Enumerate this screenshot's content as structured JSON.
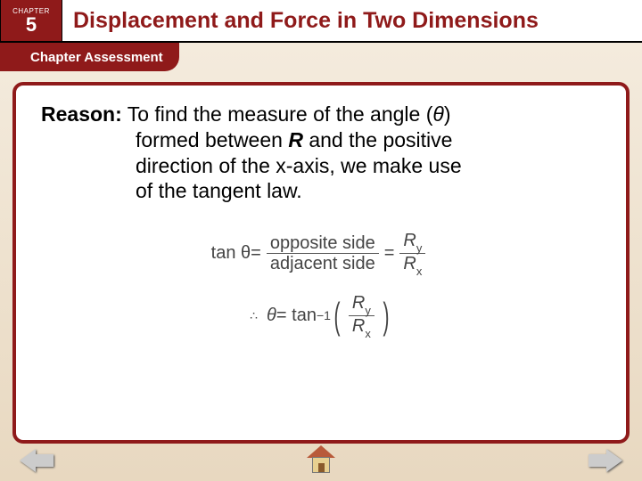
{
  "header": {
    "chapter_label": "CHAPTER",
    "chapter_number": "5",
    "title": "Displacement and Force in Two Dimensions"
  },
  "subheader": {
    "label": "Chapter Assessment"
  },
  "content": {
    "reason_label": "Reason:",
    "reason_line1_a": " To find the measure of the angle (",
    "theta_glyph": "θ",
    "reason_line1_b": ")",
    "reason_line2": "formed between ",
    "R_bold": "R",
    "reason_line2b": " and the positive",
    "reason_line3": "direction of the x-axis, we make use",
    "reason_line4": "of the tangent law."
  },
  "equation1": {
    "lhs": "tan θ",
    "eq": " = ",
    "frac1_num": "opposite side",
    "frac1_den": "adjacent side",
    "eq2": " = ",
    "frac2_num_base": "R",
    "frac2_num_sub": "y",
    "frac2_den_base": "R",
    "frac2_den_sub": "x"
  },
  "equation2": {
    "therefore": "∴",
    "theta": "θ",
    "eq": " = tan",
    "sup": "−1",
    "num_base": "R",
    "num_sub": "y",
    "den_base": "R",
    "den_sub": "x"
  },
  "colors": {
    "brand_red": "#8f1a1a",
    "bg_top": "#f5ede0",
    "bg_bottom": "#e8d8c0"
  }
}
